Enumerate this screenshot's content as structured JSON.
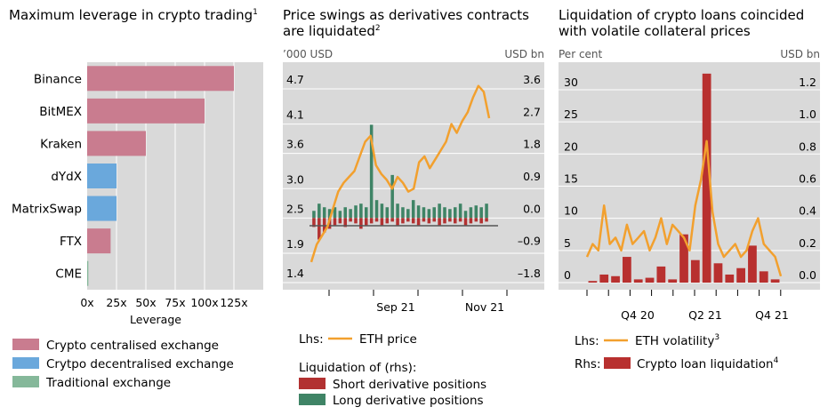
{
  "colors": {
    "cex": "#c97c8f",
    "dex": "#6aa8dc",
    "trad": "#85b89a",
    "eth": "#f2a02e",
    "short": "#b23131",
    "long": "#3f8466",
    "loan": "#b8302f",
    "panel_bg": "#d9d9d9",
    "grid": "#ffffff"
  },
  "panel1": {
    "title": "Maximum leverage in crypto trading",
    "title_sup": "1",
    "xlabel": "Leverage",
    "legend": [
      {
        "label": "Crypto centralised exchange",
        "color_key": "cex"
      },
      {
        "label": "Crytpo decentralised exchange",
        "color_key": "dex"
      },
      {
        "label": "Traditional exchange",
        "color_key": "trad"
      }
    ]
  },
  "panel2": {
    "title_line1": "Price swings as derivatives contracts",
    "title_line2": "are liquidated",
    "title_sup": "2",
    "lhs_unit": "’000 USD",
    "rhs_unit": "USD bn",
    "lhs_prefix": "Lhs:",
    "eth_label": "ETH price",
    "liq_header": "Liquidation of (rhs):",
    "short_label": "Short derivative positions",
    "long_label": "Long derivative positions"
  },
  "panel3": {
    "title_line1": "Liquidation of crypto loans coincided",
    "title_line2": "with volatile collateral prices",
    "lhs_unit": "Per cent",
    "rhs_unit": "USD bn",
    "lhs_prefix": "Lhs:",
    "rhs_prefix": "Rhs:",
    "vol_label": "ETH volatility",
    "vol_sup": "3",
    "loan_label": "Crypto loan liquidation",
    "loan_sup": "4"
  },
  "chart_data": [
    {
      "type": "bar",
      "orientation": "horizontal",
      "title": "Maximum leverage in crypto trading",
      "xlabel": "Leverage",
      "categories": [
        "Binance",
        "BitMEX",
        "Kraken",
        "dYdX",
        "MatrixSwap",
        "FTX",
        "CME"
      ],
      "values": [
        125,
        100,
        50,
        25,
        25,
        20,
        1
      ],
      "groups": [
        "Crypto centralised exchange",
        "Crypto centralised exchange",
        "Crypto centralised exchange",
        "Crytpo decentralised exchange",
        "Crytpo decentralised exchange",
        "Crypto centralised exchange",
        "Traditional exchange"
      ],
      "xticks": [
        "0x",
        "25x",
        "50x",
        "75x",
        "100x",
        "125x"
      ],
      "xlim": [
        0,
        150
      ]
    },
    {
      "type": "line",
      "title": "Price swings as derivatives contracts are liquidated",
      "x_ticks": [
        "Sep 21",
        "Nov 21"
      ],
      "lhs": {
        "unit": "’000 USD",
        "ticks": [
          "1.4",
          "1.9",
          "2.5",
          "3.0",
          "3.6",
          "4.1",
          "4.7"
        ],
        "ylim": [
          1.4,
          4.7
        ]
      },
      "rhs": {
        "unit": "USD bn",
        "ticks": [
          "–1.8",
          "–0.9",
          "0.0",
          "0.9",
          "1.8",
          "2.7",
          "3.6"
        ],
        "ylim": [
          -1.8,
          3.6
        ]
      },
      "series": [
        {
          "name": "ETH price",
          "axis": "lhs",
          "values": [
            1.75,
            2.05,
            2.2,
            2.35,
            2.65,
            2.95,
            3.1,
            3.2,
            3.3,
            3.55,
            3.8,
            3.9,
            3.4,
            3.25,
            3.15,
            3.0,
            3.2,
            3.1,
            2.95,
            3.0,
            3.45,
            3.55,
            3.35,
            3.5,
            3.65,
            3.8,
            4.1,
            3.95,
            4.15,
            4.3,
            4.55,
            4.75,
            4.65,
            4.2
          ]
        },
        {
          "name": "Short derivative positions",
          "axis": "rhs",
          "values": [
            -0.25,
            -0.6,
            -0.4,
            -0.3,
            -0.2,
            -0.15,
            -0.25,
            -0.1,
            -0.15,
            -0.3,
            -0.2,
            -0.15,
            -0.1,
            -0.2,
            -0.15,
            -0.1,
            -0.2,
            -0.15,
            -0.1,
            -0.15,
            -0.2,
            -0.1,
            -0.15,
            -0.1,
            -0.2,
            -0.15,
            -0.1,
            -0.15,
            -0.1,
            -0.2,
            -0.15,
            -0.1,
            -0.15,
            -0.1
          ]
        },
        {
          "name": "Long derivative positions",
          "axis": "rhs",
          "values": [
            0.2,
            0.4,
            0.3,
            0.25,
            0.3,
            0.2,
            0.3,
            0.25,
            0.35,
            0.4,
            0.3,
            2.6,
            0.5,
            0.4,
            0.3,
            1.2,
            0.4,
            0.3,
            0.25,
            0.5,
            0.35,
            0.3,
            0.25,
            0.3,
            0.4,
            0.3,
            0.25,
            0.3,
            0.4,
            0.2,
            0.3,
            0.35,
            0.3,
            0.4
          ]
        }
      ]
    },
    {
      "type": "bar",
      "title": "Liquidation of crypto loans coincided with volatile collateral prices",
      "x_ticks": [
        "Q4 20",
        "Q2 21",
        "Q4 21"
      ],
      "lhs": {
        "unit": "Per cent",
        "ticks": [
          "0",
          "5",
          "10",
          "15",
          "20",
          "25",
          "30"
        ],
        "ylim": [
          0,
          34
        ]
      },
      "rhs": {
        "unit": "USD bn",
        "ticks": [
          "0.0",
          "0.2",
          "0.4",
          "0.6",
          "0.8",
          "1.0",
          "1.2"
        ],
        "ylim": [
          0,
          1.36
        ]
      },
      "series": [
        {
          "name": "ETH volatility",
          "axis": "lhs",
          "values": [
            4,
            6,
            5,
            12,
            6,
            7,
            5,
            9,
            6,
            7,
            8,
            5,
            7,
            10,
            6,
            9,
            8,
            7,
            5,
            12,
            16,
            22,
            11,
            6,
            4,
            5,
            6,
            4,
            5,
            8,
            10,
            6,
            5,
            4,
            1
          ]
        },
        {
          "name": "Crypto loan liquidation",
          "axis": "rhs",
          "values": [
            0.01,
            0.05,
            0.04,
            0.16,
            0.02,
            0.03,
            0.1,
            0.02,
            0.3,
            0.14,
            1.3,
            0.12,
            0.05,
            0.09,
            0.23,
            0.07,
            0.02
          ]
        }
      ]
    }
  ]
}
